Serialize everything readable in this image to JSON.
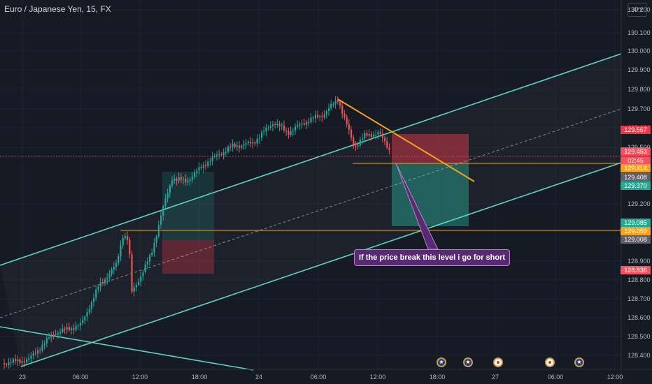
{
  "header": {
    "title": "Euro / Japanese Yen, 15, FX",
    "currency": "JPY"
  },
  "annotation": {
    "text": "If the price break this level i go for short"
  },
  "price_axis": {
    "ticks": [
      "130.200",
      "130.100",
      "130.000",
      "129.900",
      "129.800",
      "129.700",
      "129.600",
      "129.500",
      "129.200",
      "128.900",
      "128.800",
      "128.700",
      "128.600",
      "128.500",
      "128.400"
    ]
  },
  "price_tags": [
    {
      "label": "129.567",
      "color": "#f23645"
    },
    {
      "label": "129.453",
      "color": "#f7525f"
    },
    {
      "label": "02:45",
      "color": "#f7525f"
    },
    {
      "label": "129.414",
      "color": "#f7a21b"
    },
    {
      "label": "129.408",
      "color": "#5d606b"
    },
    {
      "label": "129.370",
      "color": "#22ab94"
    },
    {
      "label": "129.085",
      "color": "#22ab94"
    },
    {
      "label": "129.059",
      "color": "#f7a21b"
    },
    {
      "label": "129.008",
      "color": "#5d606b"
    },
    {
      "label": "128.836",
      "color": "#f7525f"
    }
  ],
  "time_axis": {
    "ticks": [
      "23",
      "06:00",
      "12:00",
      "18:00",
      "24",
      "06:00",
      "12:00",
      "18:00",
      "27",
      "06:00",
      "12:00"
    ]
  },
  "events": [
    {
      "name": "eu-event-icon-1",
      "type": "eu"
    },
    {
      "name": "eu-event-icon-2",
      "type": "eu"
    },
    {
      "name": "jp-event-icon-1",
      "type": "jp"
    },
    {
      "name": "jp-event-icon-2",
      "type": "jp"
    },
    {
      "name": "eu-event-icon-3",
      "type": "eu"
    }
  ],
  "colors": {
    "background": "#161a25",
    "candle_up": "#26a69a",
    "candle_down": "#ef5350",
    "channel": "#5fd3c3",
    "trendline": "#f7a21b",
    "stop_zone": "#f23645",
    "target_zone": "#22ab94",
    "annotation_bg": "#582a72"
  }
}
